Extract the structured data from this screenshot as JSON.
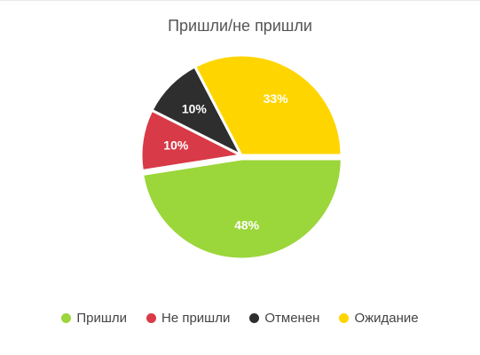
{
  "chart_data": {
    "type": "pie",
    "title": "Пришли/не пришли",
    "slices": [
      {
        "label": "Пришли",
        "value": 48,
        "value_label": "48%",
        "color": "#9BD63A"
      },
      {
        "label": "Не пришли",
        "value": 10,
        "value_label": "10%",
        "color": "#D83A47"
      },
      {
        "label": "Отменен",
        "value": 10,
        "value_label": "10%",
        "color": "#2E2E2E"
      },
      {
        "label": "Ожидание",
        "value": 33,
        "value_label": "33%",
        "color": "#FFD500"
      }
    ],
    "legend_position": "bottom",
    "exploded_slice": "Пришли"
  }
}
